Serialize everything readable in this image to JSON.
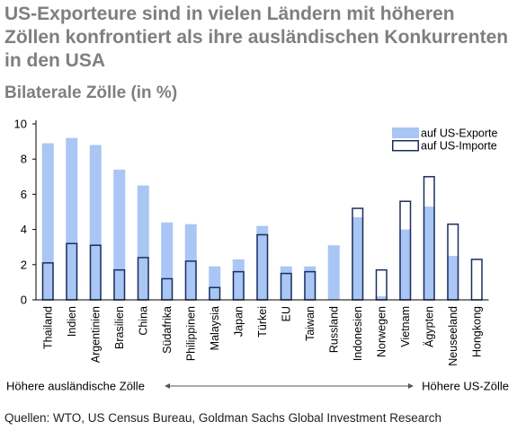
{
  "title": "US-Exporteure sind in vielen Ländern mit höheren Zöllen konfrontiert als ihre ausländischen Konkurrenten in den USA",
  "subtitle": "Bilaterale Zölle (in %)",
  "source": "Quellen: WTO, US Census Bureau, Goldman Sachs Global Investment Research",
  "chart_data": {
    "type": "bar",
    "categories": [
      "Thailand",
      "Indien",
      "Argentinien",
      "Brasilien",
      "China",
      "Südafrika",
      "Philippinen",
      "Malaysia",
      "Japan",
      "Türkei",
      "EU",
      "Taiwan",
      "Russland",
      "Indonesien",
      "Norwegen",
      "Vietnam",
      "Ägypten",
      "Neuseeland",
      "Hongkong"
    ],
    "series": [
      {
        "name": "auf US-Exporte",
        "values": [
          8.9,
          9.2,
          8.8,
          7.4,
          6.5,
          4.4,
          4.3,
          1.9,
          2.3,
          4.2,
          1.9,
          1.9,
          3.1,
          4.7,
          0.2,
          4.0,
          5.3,
          2.5,
          0.0
        ],
        "color": "#a9c6f4",
        "style": "filled"
      },
      {
        "name": "auf US-Importe",
        "values": [
          2.1,
          3.2,
          3.1,
          1.7,
          2.4,
          1.2,
          2.2,
          0.7,
          1.6,
          3.7,
          1.5,
          1.6,
          0.0,
          5.2,
          1.7,
          5.6,
          7.0,
          4.3,
          2.3
        ],
        "color": "#1c2e5e",
        "style": "outline"
      }
    ],
    "yticks": [
      0,
      2,
      4,
      6,
      8,
      10
    ],
    "ylim": [
      0,
      10
    ],
    "legend_position": "top-right",
    "grid": false,
    "arrow_left_label": "Höhere ausländische Zölle",
    "arrow_right_label": "Höhere US-Zölle"
  }
}
